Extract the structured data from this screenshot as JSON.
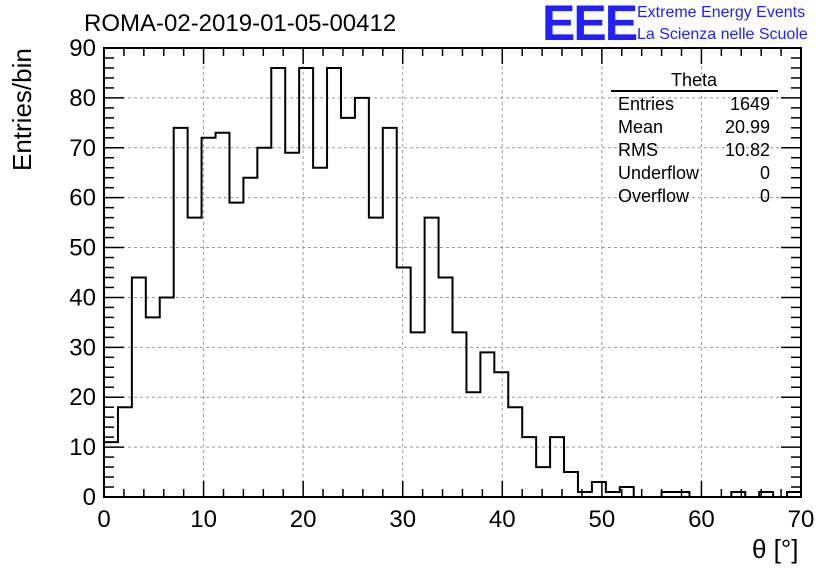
{
  "chart_data": {
    "type": "bar",
    "title": "ROMA-02-2019-01-05-00412",
    "xlabel": "θ [°]",
    "ylabel": "Entries/bin",
    "xlim": [
      0,
      70
    ],
    "ylim": [
      0,
      90
    ],
    "bin_width": 1.4,
    "grid": true,
    "xticks": [
      0,
      10,
      20,
      30,
      40,
      50,
      60,
      70
    ],
    "yticks": [
      0,
      10,
      20,
      30,
      40,
      50,
      60,
      70,
      80,
      90
    ],
    "bin_edges": [
      0,
      1.4,
      2.8,
      4.2,
      5.6,
      7.0,
      8.4,
      9.8,
      11.2,
      12.6,
      14.0,
      15.4,
      16.8,
      18.2,
      19.6,
      21.0,
      22.4,
      23.8,
      25.2,
      26.6,
      28.0,
      29.4,
      30.8,
      32.2,
      33.6,
      35.0,
      36.4,
      37.8,
      39.2,
      40.6,
      42.0,
      43.4,
      44.8,
      46.2,
      47.6,
      49.0,
      50.4,
      51.8,
      53.2,
      54.6,
      56.0,
      57.4,
      58.8,
      60.2,
      61.6,
      63.0,
      64.4,
      65.8,
      67.2,
      68.6,
      70.0
    ],
    "values": [
      11,
      18,
      44,
      36,
      40,
      74,
      56,
      72,
      73,
      59,
      64,
      70,
      86,
      69,
      86,
      66,
      86,
      76,
      80,
      56,
      74,
      46,
      33,
      56,
      44,
      33,
      21,
      29,
      25,
      18,
      12,
      6,
      12,
      5,
      1,
      3,
      1,
      2,
      0,
      0,
      1,
      1,
      0,
      0,
      0,
      1,
      0,
      1,
      0,
      1
    ],
    "stats_box": {
      "title": "Theta",
      "rows": [
        {
          "name": "Entries",
          "value": "1649"
        },
        {
          "name": "Mean",
          "value": "20.99"
        },
        {
          "name": "RMS",
          "value": "10.82"
        },
        {
          "name": "Underflow",
          "value": "0"
        },
        {
          "name": "Overflow",
          "value": "0"
        }
      ]
    }
  },
  "logo": {
    "letters": "EEE",
    "line1": "Extreme Energy Events",
    "line2": "La Scienza nelle Scuole"
  }
}
